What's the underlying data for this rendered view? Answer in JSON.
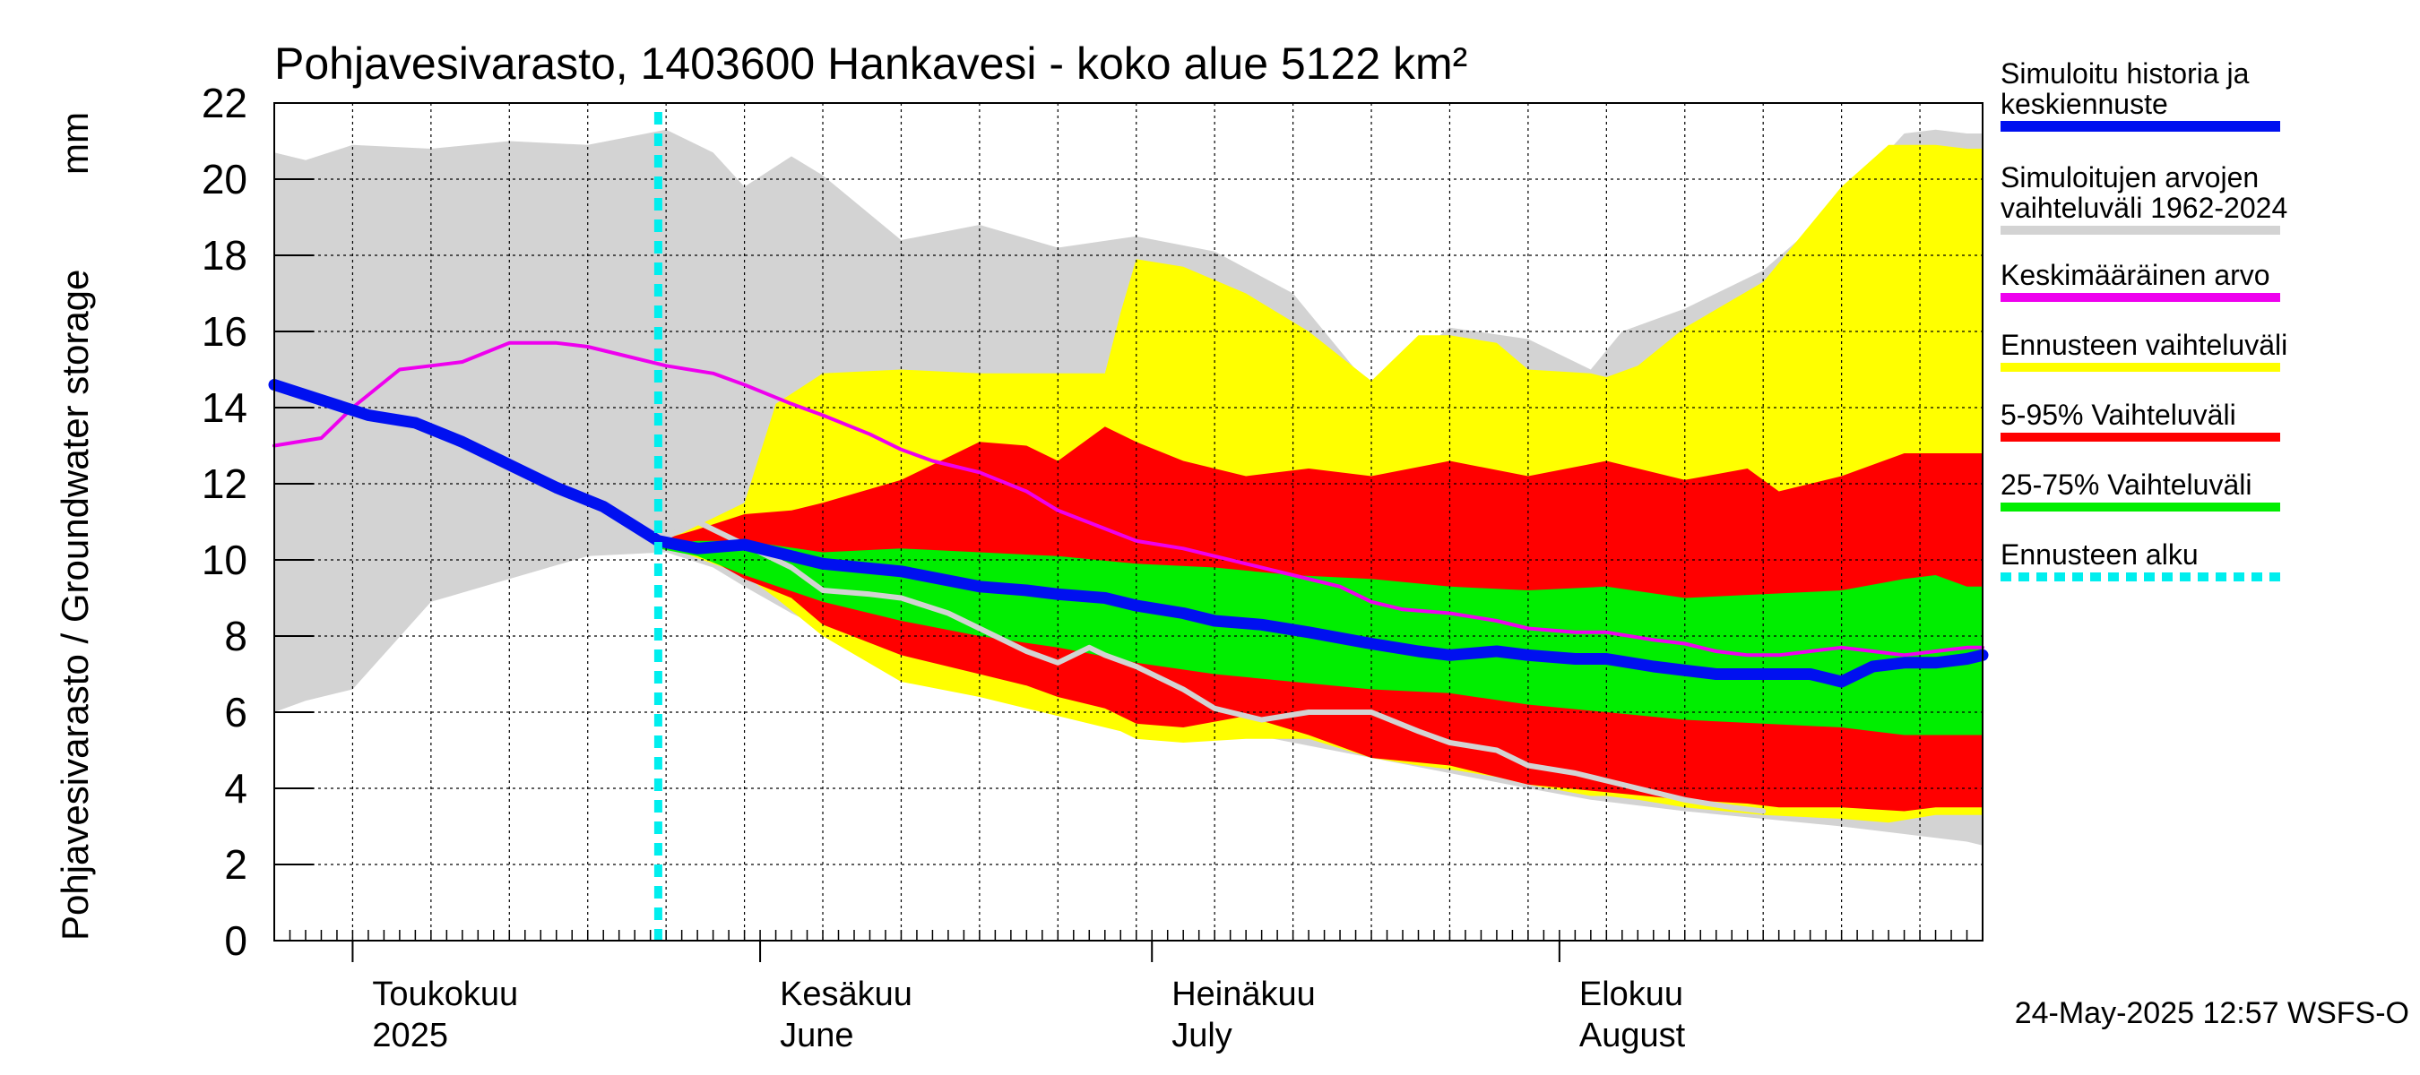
{
  "chart_data": {
    "type": "area",
    "title": "Pohjavesivarasto, 1403600 Hankavesi - koko alue 5122 km²",
    "unit_label": "mm",
    "ylabel": "Pohjavesivarasto / Groundwater storage",
    "ylim": [
      0,
      22
    ],
    "yticks": [
      "0",
      "2",
      "4",
      "6",
      "8",
      "10",
      "12",
      "14",
      "16",
      "18",
      "20",
      "22"
    ],
    "x_days_range": [
      0,
      109
    ],
    "forecast_start_day": 24.5,
    "month_labels": [
      {
        "fi": "Toukokuu",
        "en": "2025",
        "day": 5
      },
      {
        "fi": "Kesäkuu",
        "en": "June",
        "day": 31
      },
      {
        "fi": "Heinäkuu",
        "en": "July",
        "day": 56
      },
      {
        "fi": "Elokuu",
        "en": "August",
        "day": 82
      }
    ],
    "legend": [
      {
        "label": "Simuloitu historia ja keskiennuste",
        "color": "#0010f0"
      },
      {
        "label": "Simuloitujen arvojen vaihteluväli 1962-2024",
        "color": "#d3d3d3"
      },
      {
        "label": "Keskimääräinen arvo",
        "color": "#ee00ee"
      },
      {
        "label": "Ennusteen vaihteluväli",
        "color": "#ffff00"
      },
      {
        "label": "5-95% Vaihteluväli",
        "color": "#ff0000"
      },
      {
        "label": "25-75% Vaihteluväli",
        "color": "#00ee00"
      },
      {
        "label": "Ennusteen alku",
        "color": "#00eeee"
      }
    ],
    "footer": "24-May-2025 12:57 WSFS-O",
    "series": {
      "hist_range": {
        "x": [
          0,
          2,
          5,
          10,
          15,
          20,
          25,
          28,
          30,
          33,
          35,
          40,
          45,
          50,
          55,
          60,
          65,
          70,
          75,
          80,
          84,
          86,
          90,
          95,
          100,
          104,
          106,
          108,
          109
        ],
        "upper": [
          20.7,
          20.5,
          20.9,
          20.8,
          21.0,
          20.9,
          21.3,
          20.7,
          19.8,
          20.6,
          20.1,
          18.4,
          18.8,
          18.2,
          18.5,
          18.1,
          17.0,
          14.5,
          16.1,
          15.8,
          15.0,
          16.0,
          16.6,
          17.6,
          19.4,
          21.2,
          21.3,
          21.2,
          21.2
        ],
        "lower": [
          6.0,
          6.3,
          6.6,
          8.9,
          9.5,
          10.1,
          10.2,
          9.8,
          9.3,
          8.6,
          8.2,
          7.3,
          6.6,
          6.1,
          5.5,
          5.6,
          5.2,
          4.8,
          4.4,
          4.0,
          3.7,
          3.6,
          3.4,
          3.2,
          3.0,
          2.8,
          2.7,
          2.6,
          2.5
        ]
      },
      "forecast_range": {
        "x": [
          24.5,
          26,
          30,
          32,
          35,
          40,
          45,
          50,
          53,
          54,
          55,
          58,
          62,
          66,
          70,
          73,
          75,
          78,
          80,
          84,
          85,
          87,
          90,
          95,
          100,
          103,
          106,
          108,
          109
        ],
        "upper": [
          10.5,
          10.7,
          11.5,
          14.1,
          14.9,
          15.0,
          14.9,
          14.9,
          14.9,
          16.5,
          17.9,
          17.7,
          17.0,
          16.0,
          14.7,
          15.9,
          15.9,
          15.7,
          15.0,
          14.9,
          14.8,
          15.1,
          16.1,
          17.3,
          19.8,
          20.9,
          20.9,
          20.8,
          20.8
        ],
        "lower": [
          10.4,
          10.2,
          9.6,
          9.0,
          8.0,
          6.8,
          6.4,
          5.9,
          5.6,
          5.5,
          5.3,
          5.2,
          5.3,
          5.3,
          4.8,
          4.6,
          4.5,
          4.3,
          4.1,
          3.8,
          3.8,
          3.7,
          3.5,
          3.3,
          3.2,
          3.1,
          3.3,
          3.3,
          3.3
        ]
      },
      "p5_95": {
        "x": [
          24.5,
          27,
          30,
          33,
          35,
          40,
          45,
          48,
          50,
          53,
          55,
          58,
          62,
          66,
          70,
          75,
          80,
          85,
          90,
          94,
          96,
          100,
          104,
          106,
          109
        ],
        "upper": [
          10.5,
          10.8,
          11.2,
          11.3,
          11.5,
          12.1,
          13.1,
          13.0,
          12.6,
          13.5,
          13.1,
          12.6,
          12.2,
          12.4,
          12.2,
          12.6,
          12.2,
          12.6,
          12.1,
          12.4,
          11.8,
          12.2,
          12.8,
          12.8,
          12.8
        ],
        "lower": [
          10.3,
          10.2,
          9.5,
          9.0,
          8.3,
          7.5,
          7.0,
          6.7,
          6.4,
          6.1,
          5.7,
          5.6,
          5.9,
          5.4,
          4.8,
          4.6,
          4.1,
          3.9,
          3.7,
          3.6,
          3.5,
          3.5,
          3.4,
          3.5,
          3.5
        ]
      },
      "p25_75": {
        "x": [
          24.5,
          27,
          30,
          35,
          40,
          45,
          50,
          55,
          60,
          65,
          70,
          75,
          80,
          85,
          90,
          95,
          100,
          104,
          106,
          108,
          109
        ],
        "upper": [
          10.4,
          10.5,
          10.5,
          10.2,
          10.3,
          10.2,
          10.1,
          9.9,
          9.8,
          9.6,
          9.5,
          9.3,
          9.2,
          9.3,
          9.0,
          9.1,
          9.2,
          9.5,
          9.6,
          9.3,
          9.3
        ],
        "lower": [
          10.3,
          10.1,
          9.6,
          8.9,
          8.4,
          8.0,
          7.7,
          7.3,
          7.0,
          6.8,
          6.6,
          6.5,
          6.2,
          6.0,
          5.8,
          5.7,
          5.6,
          5.4,
          5.4,
          5.4,
          5.4
        ]
      },
      "mean_history": {
        "x": [
          0,
          3,
          5,
          8,
          10,
          12,
          15,
          18,
          20,
          22,
          25,
          28,
          30,
          33,
          35,
          38,
          40,
          42,
          45,
          48,
          50,
          55,
          58,
          60,
          62,
          65,
          68,
          70,
          72,
          75,
          78,
          80,
          83,
          85,
          88,
          90,
          92,
          94,
          96,
          98,
          100,
          102,
          104,
          106,
          108,
          109
        ],
        "y": [
          13.0,
          13.2,
          14.0,
          15.0,
          15.1,
          15.2,
          15.7,
          15.7,
          15.6,
          15.4,
          15.1,
          14.9,
          14.6,
          14.1,
          13.8,
          13.3,
          12.9,
          12.6,
          12.3,
          11.8,
          11.3,
          10.5,
          10.3,
          10.1,
          9.9,
          9.6,
          9.3,
          8.9,
          8.7,
          8.6,
          8.4,
          8.2,
          8.1,
          8.1,
          7.9,
          7.8,
          7.6,
          7.5,
          7.5,
          7.6,
          7.7,
          7.6,
          7.5,
          7.6,
          7.7,
          7.7
        ]
      },
      "sim_history_mean": {
        "x": [
          0,
          3,
          6,
          9,
          12,
          15,
          18,
          21,
          24.5,
          27,
          30,
          33,
          35,
          40,
          45,
          48,
          50,
          53,
          55,
          58,
          60,
          63,
          66,
          70,
          73,
          75,
          78,
          80,
          83,
          85,
          88,
          90,
          92,
          94,
          96,
          98,
          100,
          102,
          104,
          106,
          108,
          109
        ],
        "y": [
          14.6,
          14.2,
          13.8,
          13.6,
          13.1,
          12.5,
          11.9,
          11.4,
          10.5,
          10.3,
          10.4,
          10.1,
          9.9,
          9.7,
          9.3,
          9.2,
          9.1,
          9.0,
          8.8,
          8.6,
          8.4,
          8.3,
          8.1,
          7.8,
          7.6,
          7.5,
          7.6,
          7.5,
          7.4,
          7.4,
          7.2,
          7.1,
          7.0,
          7.0,
          7.0,
          7.0,
          6.8,
          7.2,
          7.3,
          7.3,
          7.4,
          7.5
        ]
      },
      "sim_history_white": {
        "x": [
          24.5,
          27,
          30,
          33,
          35,
          38,
          40,
          43,
          45,
          48,
          50,
          52,
          53,
          55,
          58,
          60,
          63,
          66,
          70,
          73,
          75,
          78,
          80,
          83,
          85,
          88,
          90,
          93,
          95
        ],
        "y": [
          10.5,
          11.0,
          10.4,
          9.8,
          9.2,
          9.1,
          9.0,
          8.6,
          8.2,
          7.6,
          7.3,
          7.7,
          7.5,
          7.2,
          6.6,
          6.1,
          5.8,
          6.0,
          6.0,
          5.5,
          5.2,
          5.0,
          4.6,
          4.4,
          4.2,
          3.9,
          3.7,
          3.5,
          3.4
        ]
      }
    }
  }
}
